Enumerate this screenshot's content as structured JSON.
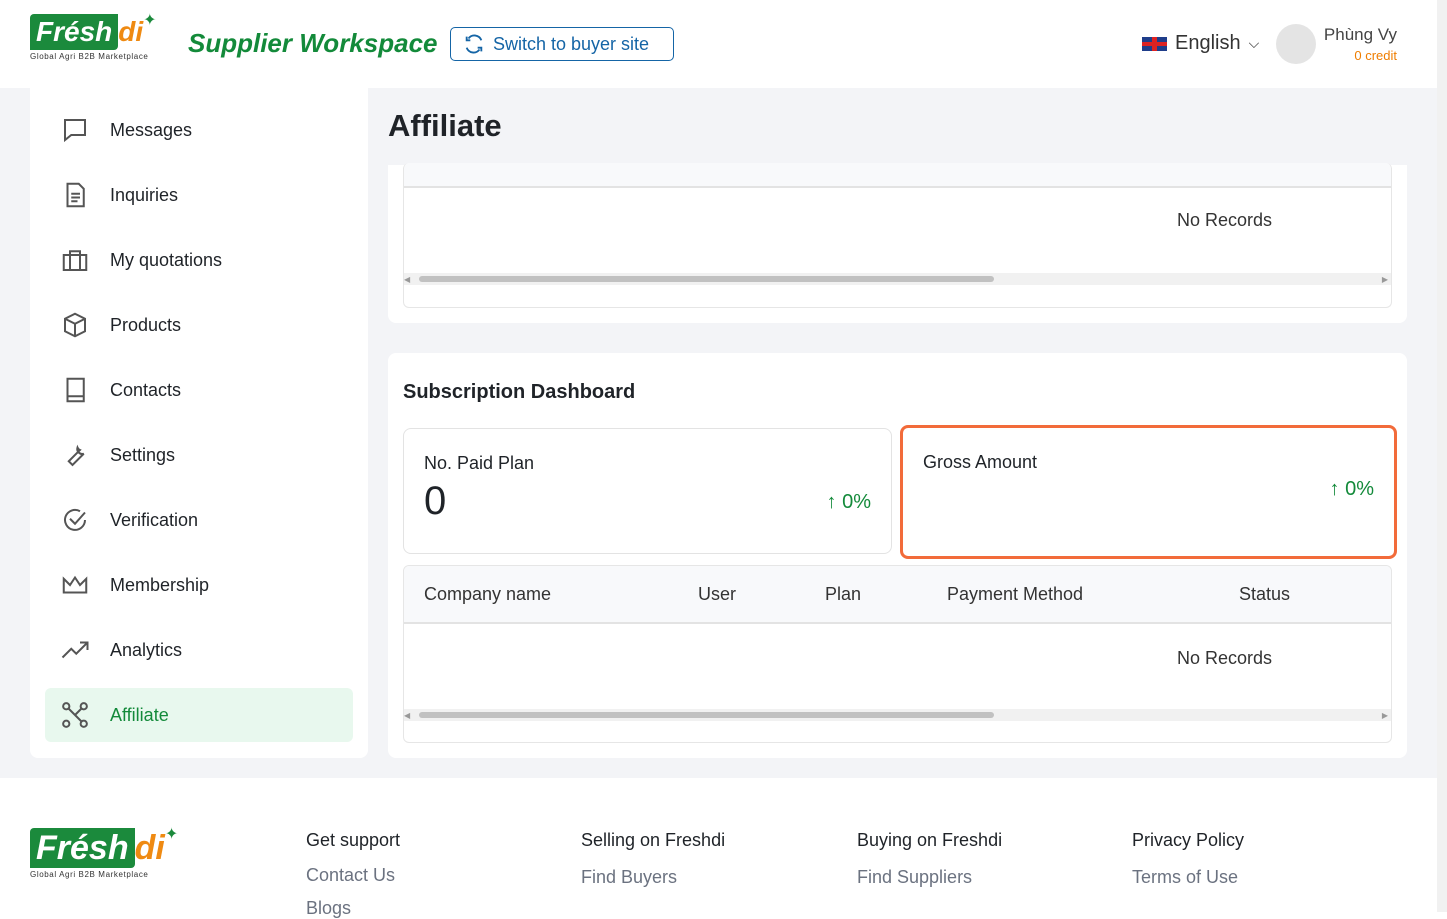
{
  "header": {
    "logo_text": "Frésh",
    "logo_text2": "di",
    "logo_tagline": "Global Agri B2B Marketplace",
    "workspace_title": "Supplier Workspace",
    "switch_label": "Switch to buyer site",
    "language": "English",
    "user_name": "Phùng Vy",
    "credit": "0 credit"
  },
  "sidebar": {
    "items": [
      {
        "label": "Messages"
      },
      {
        "label": "Inquiries"
      },
      {
        "label": "My quotations"
      },
      {
        "label": "Products"
      },
      {
        "label": "Contacts"
      },
      {
        "label": "Settings"
      },
      {
        "label": "Verification"
      },
      {
        "label": "Membership"
      },
      {
        "label": "Analytics"
      },
      {
        "label": "Affiliate",
        "active": true
      }
    ]
  },
  "main": {
    "title": "Affiliate",
    "top_table": {
      "empty_text": "No Records"
    },
    "subscription": {
      "title": "Subscription Dashboard",
      "paid_plan": {
        "label": "No. Paid Plan",
        "value": "0",
        "change": "0%"
      },
      "gross_amount": {
        "label": "Gross Amount",
        "change": "0%"
      },
      "columns": [
        "Company name",
        "User",
        "Plan",
        "Payment Method",
        "Status"
      ],
      "empty_text": "No Records"
    }
  },
  "footer": {
    "logo_tagline": "Global Agri B2B Marketplace",
    "columns": [
      {
        "title": "Get support",
        "links": [
          "Contact Us",
          "Blogs"
        ]
      },
      {
        "title": "Selling on Freshdi",
        "links": [
          "Find Buyers"
        ]
      },
      {
        "title": "Buying on Freshdi",
        "links": [
          "Find Suppliers"
        ]
      },
      {
        "title": "Privacy Policy",
        "links": [
          "Terms of Use"
        ]
      }
    ]
  },
  "colors": {
    "brand_green": "#138a3a",
    "brand_orange": "#ef8a12",
    "link_blue": "#1565a6",
    "highlight": "#f26b3a"
  }
}
